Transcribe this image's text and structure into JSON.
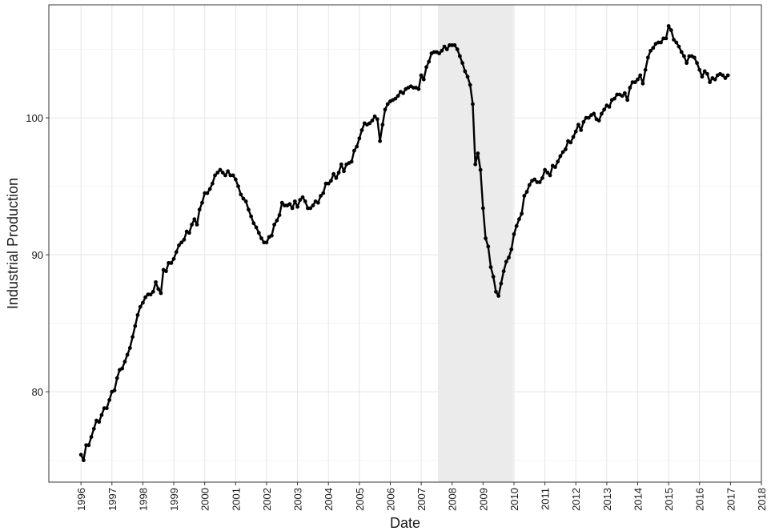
{
  "chart_data": {
    "type": "line",
    "xlabel": "Date",
    "ylabel": "Industrial Production",
    "xlim": [
      1994.96,
      2018.0
    ],
    "xticks": [
      1996,
      1997,
      1998,
      1999,
      2000,
      2001,
      2002,
      2003,
      2004,
      2005,
      2006,
      2007,
      2008,
      2009,
      2010,
      2011,
      2012,
      2013,
      2014,
      2015,
      2016,
      2017,
      2018
    ],
    "ylim": [
      73.4,
      108.25
    ],
    "yticks": [
      80,
      90,
      100
    ],
    "y_minor_grid": [
      75,
      85,
      95,
      105
    ],
    "grid": true,
    "shaded_regions": [
      {
        "start": 2007.54,
        "end": 2009.97,
        "color": "#ebebeb"
      }
    ],
    "x": [
      1996,
      1996.083,
      1996.167,
      1996.25,
      1996.333,
      1996.417,
      1996.5,
      1996.583,
      1996.667,
      1996.75,
      1996.833,
      1996.917,
      1997,
      1997.083,
      1997.167,
      1997.25,
      1997.333,
      1997.417,
      1997.5,
      1997.583,
      1997.667,
      1997.75,
      1997.833,
      1997.917,
      1998,
      1998.083,
      1998.167,
      1998.25,
      1998.333,
      1998.417,
      1998.5,
      1998.583,
      1998.667,
      1998.75,
      1998.833,
      1998.917,
      1999,
      1999.083,
      1999.167,
      1999.25,
      1999.333,
      1999.417,
      1999.5,
      1999.583,
      1999.667,
      1999.75,
      1999.833,
      1999.917,
      2000,
      2000.083,
      2000.167,
      2000.25,
      2000.333,
      2000.417,
      2000.5,
      2000.583,
      2000.667,
      2000.75,
      2000.833,
      2000.917,
      2001,
      2001.083,
      2001.167,
      2001.25,
      2001.333,
      2001.417,
      2001.5,
      2001.583,
      2001.667,
      2001.75,
      2001.833,
      2001.917,
      2002,
      2002.083,
      2002.167,
      2002.25,
      2002.333,
      2002.417,
      2002.5,
      2002.583,
      2002.667,
      2002.75,
      2002.833,
      2002.917,
      2003,
      2003.083,
      2003.167,
      2003.25,
      2003.333,
      2003.417,
      2003.5,
      2003.583,
      2003.667,
      2003.75,
      2003.833,
      2003.917,
      2004,
      2004.083,
      2004.167,
      2004.25,
      2004.333,
      2004.417,
      2004.5,
      2004.583,
      2004.667,
      2004.75,
      2004.833,
      2004.917,
      2005,
      2005.083,
      2005.167,
      2005.25,
      2005.333,
      2005.417,
      2005.5,
      2005.583,
      2005.667,
      2005.75,
      2005.833,
      2005.917,
      2006,
      2006.083,
      2006.167,
      2006.25,
      2006.333,
      2006.417,
      2006.5,
      2006.583,
      2006.667,
      2006.75,
      2006.833,
      2006.917,
      2007,
      2007.083,
      2007.167,
      2007.25,
      2007.333,
      2007.417,
      2007.5,
      2007.583,
      2007.667,
      2007.75,
      2007.833,
      2007.917,
      2008,
      2008.083,
      2008.167,
      2008.25,
      2008.333,
      2008.417,
      2008.5,
      2008.583,
      2008.667,
      2008.75,
      2008.833,
      2008.917,
      2009,
      2009.083,
      2009.167,
      2009.25,
      2009.333,
      2009.417,
      2009.5,
      2009.583,
      2009.667,
      2009.75,
      2009.833,
      2009.917,
      2010,
      2010.083,
      2010.167,
      2010.25,
      2010.333,
      2010.417,
      2010.5,
      2010.583,
      2010.667,
      2010.75,
      2010.833,
      2010.917,
      2011,
      2011.083,
      2011.167,
      2011.25,
      2011.333,
      2011.417,
      2011.5,
      2011.583,
      2011.667,
      2011.75,
      2011.833,
      2011.917,
      2012,
      2012.083,
      2012.167,
      2012.25,
      2012.333,
      2012.417,
      2012.5,
      2012.583,
      2012.667,
      2012.75,
      2012.833,
      2012.917,
      2013,
      2013.083,
      2013.167,
      2013.25,
      2013.333,
      2013.417,
      2013.5,
      2013.583,
      2013.667,
      2013.75,
      2013.833,
      2013.917,
      2014,
      2014.083,
      2014.167,
      2014.25,
      2014.333,
      2014.417,
      2014.5,
      2014.583,
      2014.667,
      2014.75,
      2014.833,
      2014.917,
      2015,
      2015.083,
      2015.167,
      2015.25,
      2015.333,
      2015.417,
      2015.5,
      2015.583,
      2015.667,
      2015.75,
      2015.833,
      2015.917,
      2016,
      2016.083,
      2016.167,
      2016.25,
      2016.333,
      2016.417,
      2016.5,
      2016.583,
      2016.667,
      2016.75,
      2016.833,
      2016.917
    ],
    "series": [
      {
        "color": "#000000",
        "values": [
          75.4,
          75.0,
          76.1,
          76.1,
          76.7,
          77.3,
          77.9,
          77.8,
          78.3,
          78.8,
          78.8,
          79.4,
          80.0,
          80.1,
          81.0,
          81.6,
          81.7,
          82.2,
          82.7,
          83.2,
          84.0,
          84.8,
          85.6,
          86.2,
          86.5,
          86.9,
          87.1,
          87.1,
          87.3,
          88.0,
          87.5,
          87.2,
          88.9,
          88.8,
          89.4,
          89.4,
          89.7,
          90.2,
          90.7,
          90.9,
          91.1,
          91.7,
          91.6,
          92.2,
          92.6,
          92.2,
          93.3,
          93.8,
          94.5,
          94.5,
          94.8,
          95.2,
          95.8,
          96.0,
          96.2,
          96.0,
          95.8,
          96.1,
          95.8,
          95.8,
          95.5,
          95.0,
          94.4,
          94.1,
          93.9,
          93.3,
          92.8,
          92.3,
          92.0,
          91.6,
          91.2,
          90.9,
          90.9,
          91.3,
          91.4,
          92.2,
          92.5,
          92.9,
          93.8,
          93.6,
          93.6,
          93.7,
          93.4,
          93.9,
          93.5,
          94.0,
          94.2,
          93.9,
          93.4,
          93.4,
          93.6,
          93.9,
          93.8,
          94.3,
          94.5,
          95.2,
          95.2,
          95.4,
          95.9,
          95.6,
          96.0,
          96.6,
          96.1,
          96.6,
          96.7,
          96.8,
          97.6,
          97.9,
          98.5,
          99.1,
          99.6,
          99.5,
          99.6,
          99.8,
          100.1,
          99.9,
          98.3,
          99.5,
          100.6,
          101.0,
          101.2,
          101.3,
          101.4,
          101.6,
          101.9,
          101.8,
          102.1,
          102.2,
          102.3,
          102.2,
          102.2,
          102.1,
          103.1,
          102.8,
          103.7,
          104.1,
          104.7,
          104.8,
          104.8,
          104.7,
          104.9,
          105.2,
          105.0,
          105.3,
          105.3,
          105.3,
          105.0,
          104.5,
          104.0,
          103.4,
          103.0,
          102.4,
          101.0,
          96.6,
          97.4,
          96.2,
          93.4,
          91.2,
          90.6,
          89.1,
          88.4,
          87.3,
          87.0,
          87.9,
          88.8,
          89.5,
          89.8,
          90.4,
          91.5,
          92.1,
          92.6,
          93.0,
          94.3,
          94.6,
          95.1,
          95.4,
          95.5,
          95.3,
          95.3,
          95.6,
          96.2,
          96.0,
          95.8,
          96.5,
          96.4,
          96.8,
          97.2,
          97.5,
          97.7,
          98.3,
          98.2,
          98.6,
          99.0,
          99.5,
          99.1,
          99.7,
          100.0,
          100.0,
          100.2,
          100.3,
          99.9,
          99.8,
          100.3,
          100.6,
          100.9,
          100.8,
          101.3,
          101.4,
          101.7,
          101.7,
          101.6,
          101.8,
          101.3,
          102.2,
          102.6,
          102.6,
          102.8,
          103.1,
          102.5,
          103.5,
          104.4,
          104.9,
          105.1,
          105.4,
          105.5,
          105.5,
          105.8,
          105.8,
          106.7,
          106.4,
          105.7,
          105.5,
          105.2,
          104.8,
          104.5,
          104.0,
          104.5,
          104.5,
          104.4,
          104.0,
          103.5,
          103.0,
          103.4,
          103.2,
          102.6,
          102.9,
          102.8,
          103.1,
          103.2,
          103.1,
          102.9,
          103.1
        ]
      }
    ]
  }
}
